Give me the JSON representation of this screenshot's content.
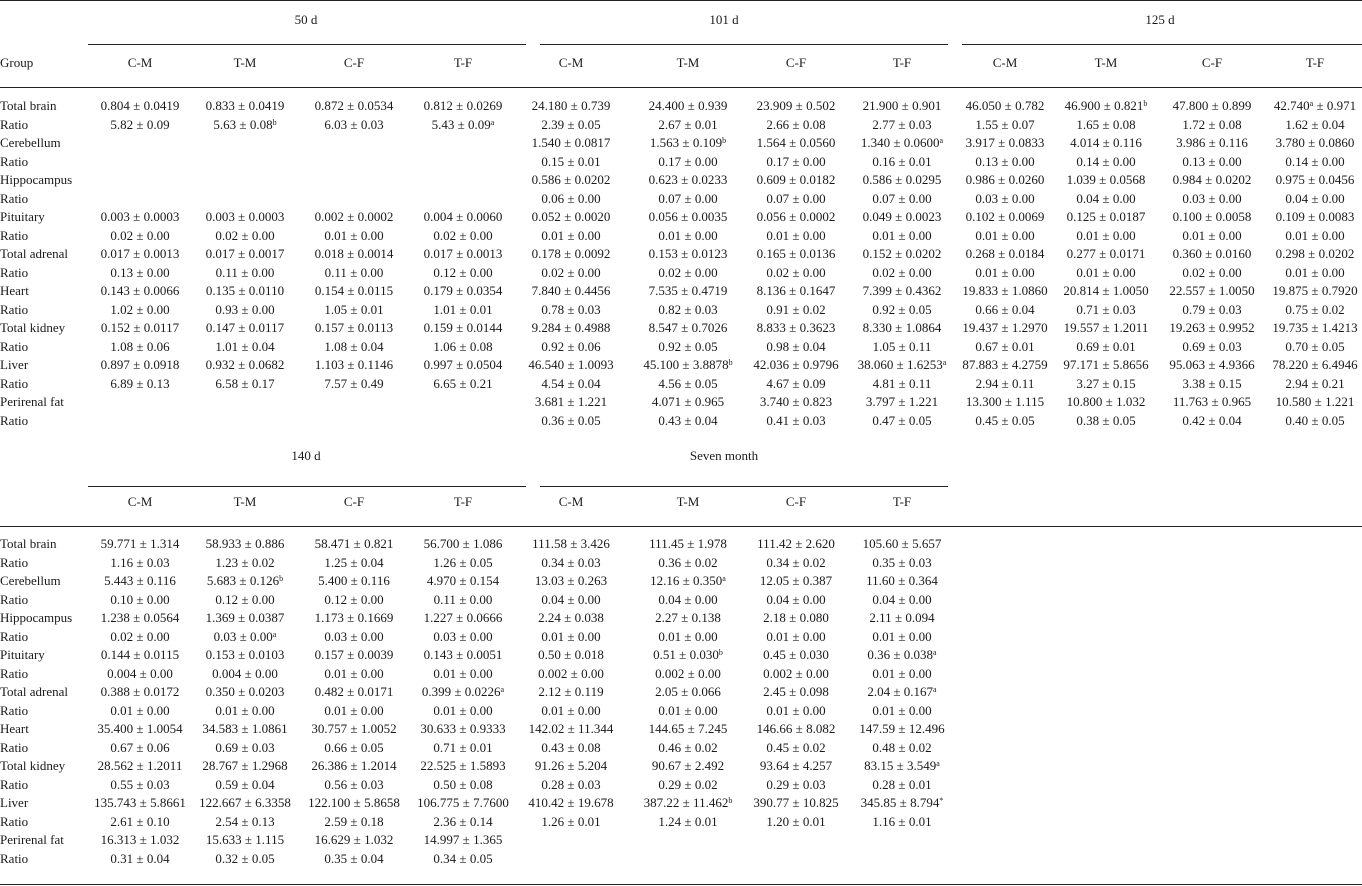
{
  "header_label": "Group",
  "blocks": [
    {
      "groups": [
        {
          "title": "50 d",
          "cols": [
            "C-M",
            "T-M",
            "C-F",
            "T-F"
          ],
          "cells": [
            [
              "0.804 ± 0.0419",
              "0.833 ± 0.0419",
              "0.872 ± 0.0534",
              "0.812 ± 0.0269"
            ],
            [
              "5.82 ± 0.09",
              "5.63 ± 0.08|b",
              "6.03 ± 0.03",
              "5.43 ± 0.09|a"
            ],
            [
              "",
              "",
              "",
              ""
            ],
            [
              "",
              "",
              "",
              ""
            ],
            [
              "",
              "",
              "",
              ""
            ],
            [
              "",
              "",
              "",
              ""
            ],
            [
              "0.003 ± 0.0003",
              "0.003 ± 0.0003",
              "0.002 ± 0.0002",
              "0.004 ± 0.0060"
            ],
            [
              "0.02 ± 0.00",
              "0.02 ± 0.00",
              "0.01 ± 0.00",
              "0.02 ± 0.00"
            ],
            [
              "0.017 ± 0.0013",
              "0.017 ± 0.0017",
              "0.018 ± 0.0014",
              "0.017 ± 0.0013"
            ],
            [
              "0.13 ± 0.00",
              "0.11 ± 0.00",
              "0.11 ± 0.00",
              "0.12 ± 0.00"
            ],
            [
              "0.143 ± 0.0066",
              "0.135 ± 0.0110",
              "0.154 ± 0.0115",
              "0.179 ± 0.0354"
            ],
            [
              "1.02 ± 0.00",
              "0.93 ± 0.00",
              "1.05 ± 0.01",
              "1.01 ± 0.01"
            ],
            [
              "0.152 ± 0.0117",
              "0.147 ± 0.0117",
              "0.157 ± 0.0113",
              "0.159 ± 0.0144"
            ],
            [
              "1.08 ± 0.06",
              "1.01 ± 0.04",
              "1.08 ± 0.04",
              "1.06 ± 0.08"
            ],
            [
              "0.897 ± 0.0918",
              "0.932 ± 0.0682",
              "1.103 ± 0.1146",
              "0.997 ± 0.0504"
            ],
            [
              "6.89 ± 0.13",
              "6.58 ± 0.17",
              "7.57 ± 0.49",
              "6.65 ± 0.21"
            ],
            [
              "",
              "",
              "",
              ""
            ],
            [
              "",
              "",
              "",
              ""
            ]
          ]
        },
        {
          "title": "101 d",
          "cols": [
            "C-M",
            "T-M",
            "C-F",
            "T-F"
          ],
          "cells": [
            [
              "24.180 ± 0.739",
              "24.400 ± 0.939",
              "23.909 ± 0.502",
              "21.900 ± 0.901"
            ],
            [
              "2.39 ± 0.05",
              "2.67 ± 0.01",
              "2.66 ± 0.08",
              "2.77 ± 0.03"
            ],
            [
              "1.540 ± 0.0817",
              "1.563 ± 0.109|b",
              "1.564 ± 0.0560",
              "1.340 ± 0.0600|a"
            ],
            [
              "0.15 ± 0.01",
              "0.17 ± 0.00",
              "0.17 ± 0.00",
              "0.16 ± 0.01"
            ],
            [
              "0.586 ± 0.0202",
              "0.623 ± 0.0233",
              "0.609 ± 0.0182",
              "0.586 ± 0.0295"
            ],
            [
              "0.06 ± 0.00",
              "0.07 ± 0.00",
              "0.07 ± 0.00",
              "0.07 ± 0.00"
            ],
            [
              "0.052 ± 0.0020",
              "0.056 ± 0.0035",
              "0.056 ± 0.0002",
              "0.049 ± 0.0023"
            ],
            [
              "0.01 ± 0.00",
              "0.01 ± 0.00",
              "0.01 ± 0.00",
              "0.01 ± 0.00"
            ],
            [
              "0.178 ± 0.0092",
              "0.153 ± 0.0123",
              "0.165 ± 0.0136",
              "0.152 ± 0.0202"
            ],
            [
              "0.02 ± 0.00",
              "0.02 ± 0.00",
              "0.02 ± 0.00",
              "0.02 ± 0.00"
            ],
            [
              "7.840 ± 0.4456",
              "7.535 ± 0.4719",
              "8.136 ± 0.1647",
              "7.399 ± 0.4362"
            ],
            [
              "0.78 ± 0.03",
              "0.82 ± 0.03",
              "0.91 ± 0.02",
              "0.92 ± 0.05"
            ],
            [
              "9.284 ± 0.4988",
              "8.547 ± 0.7026",
              "8.833 ± 0.3623",
              "8.330 ± 1.0864"
            ],
            [
              "0.92 ± 0.06",
              "0.92 ± 0.05",
              "0.98 ± 0.04",
              "1.05 ± 0.11"
            ],
            [
              "46.540 ± 1.0093",
              "45.100 ± 3.8878|b",
              "42.036 ± 0.9796",
              "38.060 ± 1.6253|a"
            ],
            [
              "4.54 ± 0.04",
              "4.56 ± 0.05",
              "4.67 ± 0.09",
              "4.81 ± 0.11"
            ],
            [
              "3.681 ± 1.221",
              "4.071 ± 0.965",
              "3.740 ± 0.823",
              "3.797 ± 1.221"
            ],
            [
              "0.36 ± 0.05",
              "0.43 ± 0.04",
              "0.41 ± 0.03",
              "0.47 ± 0.05"
            ]
          ]
        },
        {
          "title": "125 d",
          "cols": [
            "C-M",
            "T-M",
            "C-F",
            "T-F"
          ],
          "cells": [
            [
              "46.050 ± 0.782",
              "46.900 ± 0.821|b",
              "47.800 ± 0.899",
              "42.740|a ± 0.971"
            ],
            [
              "1.55 ± 0.07",
              "1.65 ± 0.08",
              "1.72 ± 0.08",
              "1.62 ± 0.04"
            ],
            [
              "3.917 ± 0.0833",
              "4.014 ± 0.116",
              "3.986 ± 0.116",
              "3.780 ± 0.0860"
            ],
            [
              "0.13 ± 0.00",
              "0.14 ± 0.00",
              "0.13 ± 0.00",
              "0.14 ± 0.00"
            ],
            [
              "0.986 ± 0.0260",
              "1.039 ± 0.0568",
              "0.984 ± 0.0202",
              "0.975 ± 0.0456"
            ],
            [
              "0.03 ± 0.00",
              "0.04 ± 0.00",
              "0.03 ± 0.00",
              "0.04 ± 0.00"
            ],
            [
              "0.102 ± 0.0069",
              "0.125 ± 0.0187",
              "0.100 ± 0.0058",
              "0.109 ± 0.0083"
            ],
            [
              "0.01 ± 0.00",
              "0.01 ± 0.00",
              "0.01 ± 0.00",
              "0.01 ± 0.00"
            ],
            [
              "0.268 ± 0.0184",
              "0.277 ± 0.0171",
              "0.360 ± 0.0160",
              "0.298 ± 0.0202"
            ],
            [
              "0.01 ± 0.00",
              "0.01 ± 0.00",
              "0.02 ± 0.00",
              "0.01 ± 0.00"
            ],
            [
              "19.833 ± 1.0860",
              "20.814 ± 1.0050",
              "22.557 ± 1.0050",
              "19.875 ± 0.7920"
            ],
            [
              "0.66 ± 0.04",
              "0.71 ± 0.03",
              "0.79 ± 0.03",
              "0.75 ± 0.02"
            ],
            [
              "19.437 ± 1.2970",
              "19.557 ± 1.2011",
              "19.263 ± 0.9952",
              "19.735 ± 1.4213"
            ],
            [
              "0.67 ± 0.01",
              "0.69 ± 0.01",
              "0.69 ± 0.03",
              "0.70 ± 0.05"
            ],
            [
              "87.883 ± 4.2759",
              "97.171 ± 5.8656",
              "95.063 ± 4.9366",
              "78.220 ± 6.4946"
            ],
            [
              "2.94 ± 0.11",
              "3.27 ± 0.15",
              "3.38 ± 0.15",
              "2.94 ± 0.21"
            ],
            [
              "13.300 ± 1.115",
              "10.800 ± 1.032",
              "11.763 ± 0.965",
              "10.580 ± 1.221"
            ],
            [
              "0.45 ± 0.05",
              "0.38 ± 0.05",
              "0.42 ± 0.04",
              "0.40 ± 0.05"
            ]
          ]
        }
      ],
      "rows": [
        "Total brain",
        "Ratio",
        "Cerebellum",
        "Ratio",
        "Hippocampus",
        "Ratio",
        "Pituitary",
        "Ratio",
        "Total adrenal",
        "Ratio",
        "Heart",
        "Ratio",
        "Total kidney",
        "Ratio",
        "Liver",
        "Ratio",
        "Perirenal fat",
        "Ratio"
      ]
    },
    {
      "groups": [
        {
          "title": "140 d",
          "cols": [
            "C-M",
            "T-M",
            "C-F",
            "T-F"
          ],
          "cells": [
            [
              "59.771 ± 1.314",
              "58.933 ± 0.886",
              "58.471 ± 0.821",
              "56.700 ± 1.086"
            ],
            [
              "1.16 ± 0.03",
              "1.23 ± 0.02",
              "1.25 ± 0.04",
              "1.26 ± 0.05"
            ],
            [
              "5.443 ± 0.116",
              "5.683 ± 0.126|b",
              "5.400 ± 0.116",
              "4.970 ± 0.154"
            ],
            [
              "0.10 ± 0.00",
              "0.12 ± 0.00",
              "0.12 ± 0.00",
              "0.11 ± 0.00"
            ],
            [
              "1.238 ± 0.0564",
              "1.369 ± 0.0387",
              "1.173 ± 0.1669",
              "1.227 ± 0.0666"
            ],
            [
              "0.02 ± 0.00",
              "0.03 ± 0.00|a",
              "0.03 ± 0.00",
              "0.03 ± 0.00"
            ],
            [
              "0.144 ± 0.0115",
              "0.153 ± 0.0103",
              "0.157 ± 0.0039",
              "0.143 ± 0.0051"
            ],
            [
              "0.004 ± 0.00",
              "0.004 ± 0.00",
              "0.01 ± 0.00",
              "0.01 ± 0.00"
            ],
            [
              "0.388 ± 0.0172",
              "0.350 ± 0.0203",
              "0.482 ± 0.0171",
              "0.399 ± 0.0226|a"
            ],
            [
              "0.01 ± 0.00",
              "0.01 ± 0.00",
              "0.01 ± 0.00",
              "0.01 ± 0.00"
            ],
            [
              "35.400 ± 1.0054",
              "34.583 ± 1.0861",
              "30.757 ± 1.0052",
              "30.633 ± 0.9333"
            ],
            [
              "0.67 ± 0.06",
              "0.69 ± 0.03",
              "0.66 ± 0.05",
              "0.71 ± 0.01"
            ],
            [
              "28.562 ± 1.2011",
              "28.767 ± 1.2968",
              "26.386 ± 1.2014",
              "22.525 ± 1.5893"
            ],
            [
              "0.55 ± 0.03",
              "0.59 ± 0.04",
              "0.56 ± 0.03",
              "0.50 ± 0.08"
            ],
            [
              "135.743 ± 5.8661",
              "122.667 ± 6.3358",
              "122.100 ± 5.8658",
              "106.775 ± 7.7600"
            ],
            [
              "2.61 ± 0.10",
              "2.54 ± 0.13",
              "2.59 ± 0.18",
              "2.36 ± 0.14"
            ],
            [
              "16.313 ± 1.032",
              "15.633 ± 1.115",
              "16.629 ± 1.032",
              "14.997 ± 1.365"
            ],
            [
              "0.31 ± 0.04",
              "0.32 ± 0.05",
              "0.35 ± 0.04",
              "0.34 ± 0.05"
            ]
          ]
        },
        {
          "title": "Seven month",
          "cols": [
            "C-M",
            "T-M",
            "C-F",
            "T-F"
          ],
          "cells": [
            [
              "111.58 ± 3.426",
              "111.45 ± 1.978",
              "111.42 ± 2.620",
              "105.60 ± 5.657"
            ],
            [
              "0.34 ± 0.03",
              "0.36 ± 0.02",
              "0.34 ± 0.02",
              "0.35 ± 0.03"
            ],
            [
              "13.03 ± 0.263",
              "12.16 ± 0.350|a",
              "12.05 ± 0.387",
              "11.60 ± 0.364"
            ],
            [
              "0.04 ± 0.00",
              "0.04 ± 0.00",
              "0.04 ± 0.00",
              "0.04 ± 0.00"
            ],
            [
              "2.24 ± 0.038",
              "2.27 ± 0.138",
              "2.18 ± 0.080",
              "2.11 ± 0.094"
            ],
            [
              "0.01 ± 0.00",
              "0.01 ± 0.00",
              "0.01 ± 0.00",
              "0.01 ± 0.00"
            ],
            [
              "0.50 ± 0.018",
              "0.51 ± 0.030|b",
              "0.45 ± 0.030",
              "0.36 ± 0.038|a"
            ],
            [
              "0.002 ± 0.00",
              "0.002 ± 0.00",
              "0.002 ± 0.00",
              "0.01 ± 0.00"
            ],
            [
              "2.12 ± 0.119",
              "2.05 ± 0.066",
              "2.45 ± 0.098",
              "2.04 ± 0.167|a"
            ],
            [
              "0.01 ± 0.00",
              "0.01 ± 0.00",
              "0.01 ± 0.00",
              "0.01 ± 0.00"
            ],
            [
              "142.02 ± 11.344",
              "144.65 ± 7.245",
              "146.66 ± 8.082",
              "147.59 ± 12.496"
            ],
            [
              "0.43 ± 0.08",
              "0.46 ± 0.02",
              "0.45 ± 0.02",
              "0.48 ± 0.02"
            ],
            [
              "91.26 ± 5.204",
              "90.67 ± 2.492",
              "93.64 ± 4.257",
              "83.15 ± 3.549|a"
            ],
            [
              "0.28 ± 0.03",
              "0.29 ± 0.02",
              "0.29 ± 0.03",
              "0.28 ± 0.01"
            ],
            [
              "410.42 ± 19.678",
              "387.22 ± 11.462|b",
              "390.77 ± 10.825",
              "345.85 ± 8.794|*"
            ],
            [
              "1.26 ± 0.01",
              "1.24 ± 0.01",
              "1.20 ± 0.01",
              "1.16 ± 0.01"
            ],
            [
              "",
              "",
              "",
              ""
            ],
            [
              "",
              "",
              "",
              ""
            ]
          ]
        }
      ],
      "rows": [
        "Total brain",
        "Ratio",
        "Cerebellum",
        "Ratio",
        "Hippocampus",
        "Ratio",
        "Pituitary",
        "Ratio",
        "Total adrenal",
        "Ratio",
        "Heart",
        "Ratio",
        "Total kidney",
        "Ratio",
        "Liver",
        "Ratio",
        "Perirenal fat",
        "Ratio"
      ]
    }
  ]
}
